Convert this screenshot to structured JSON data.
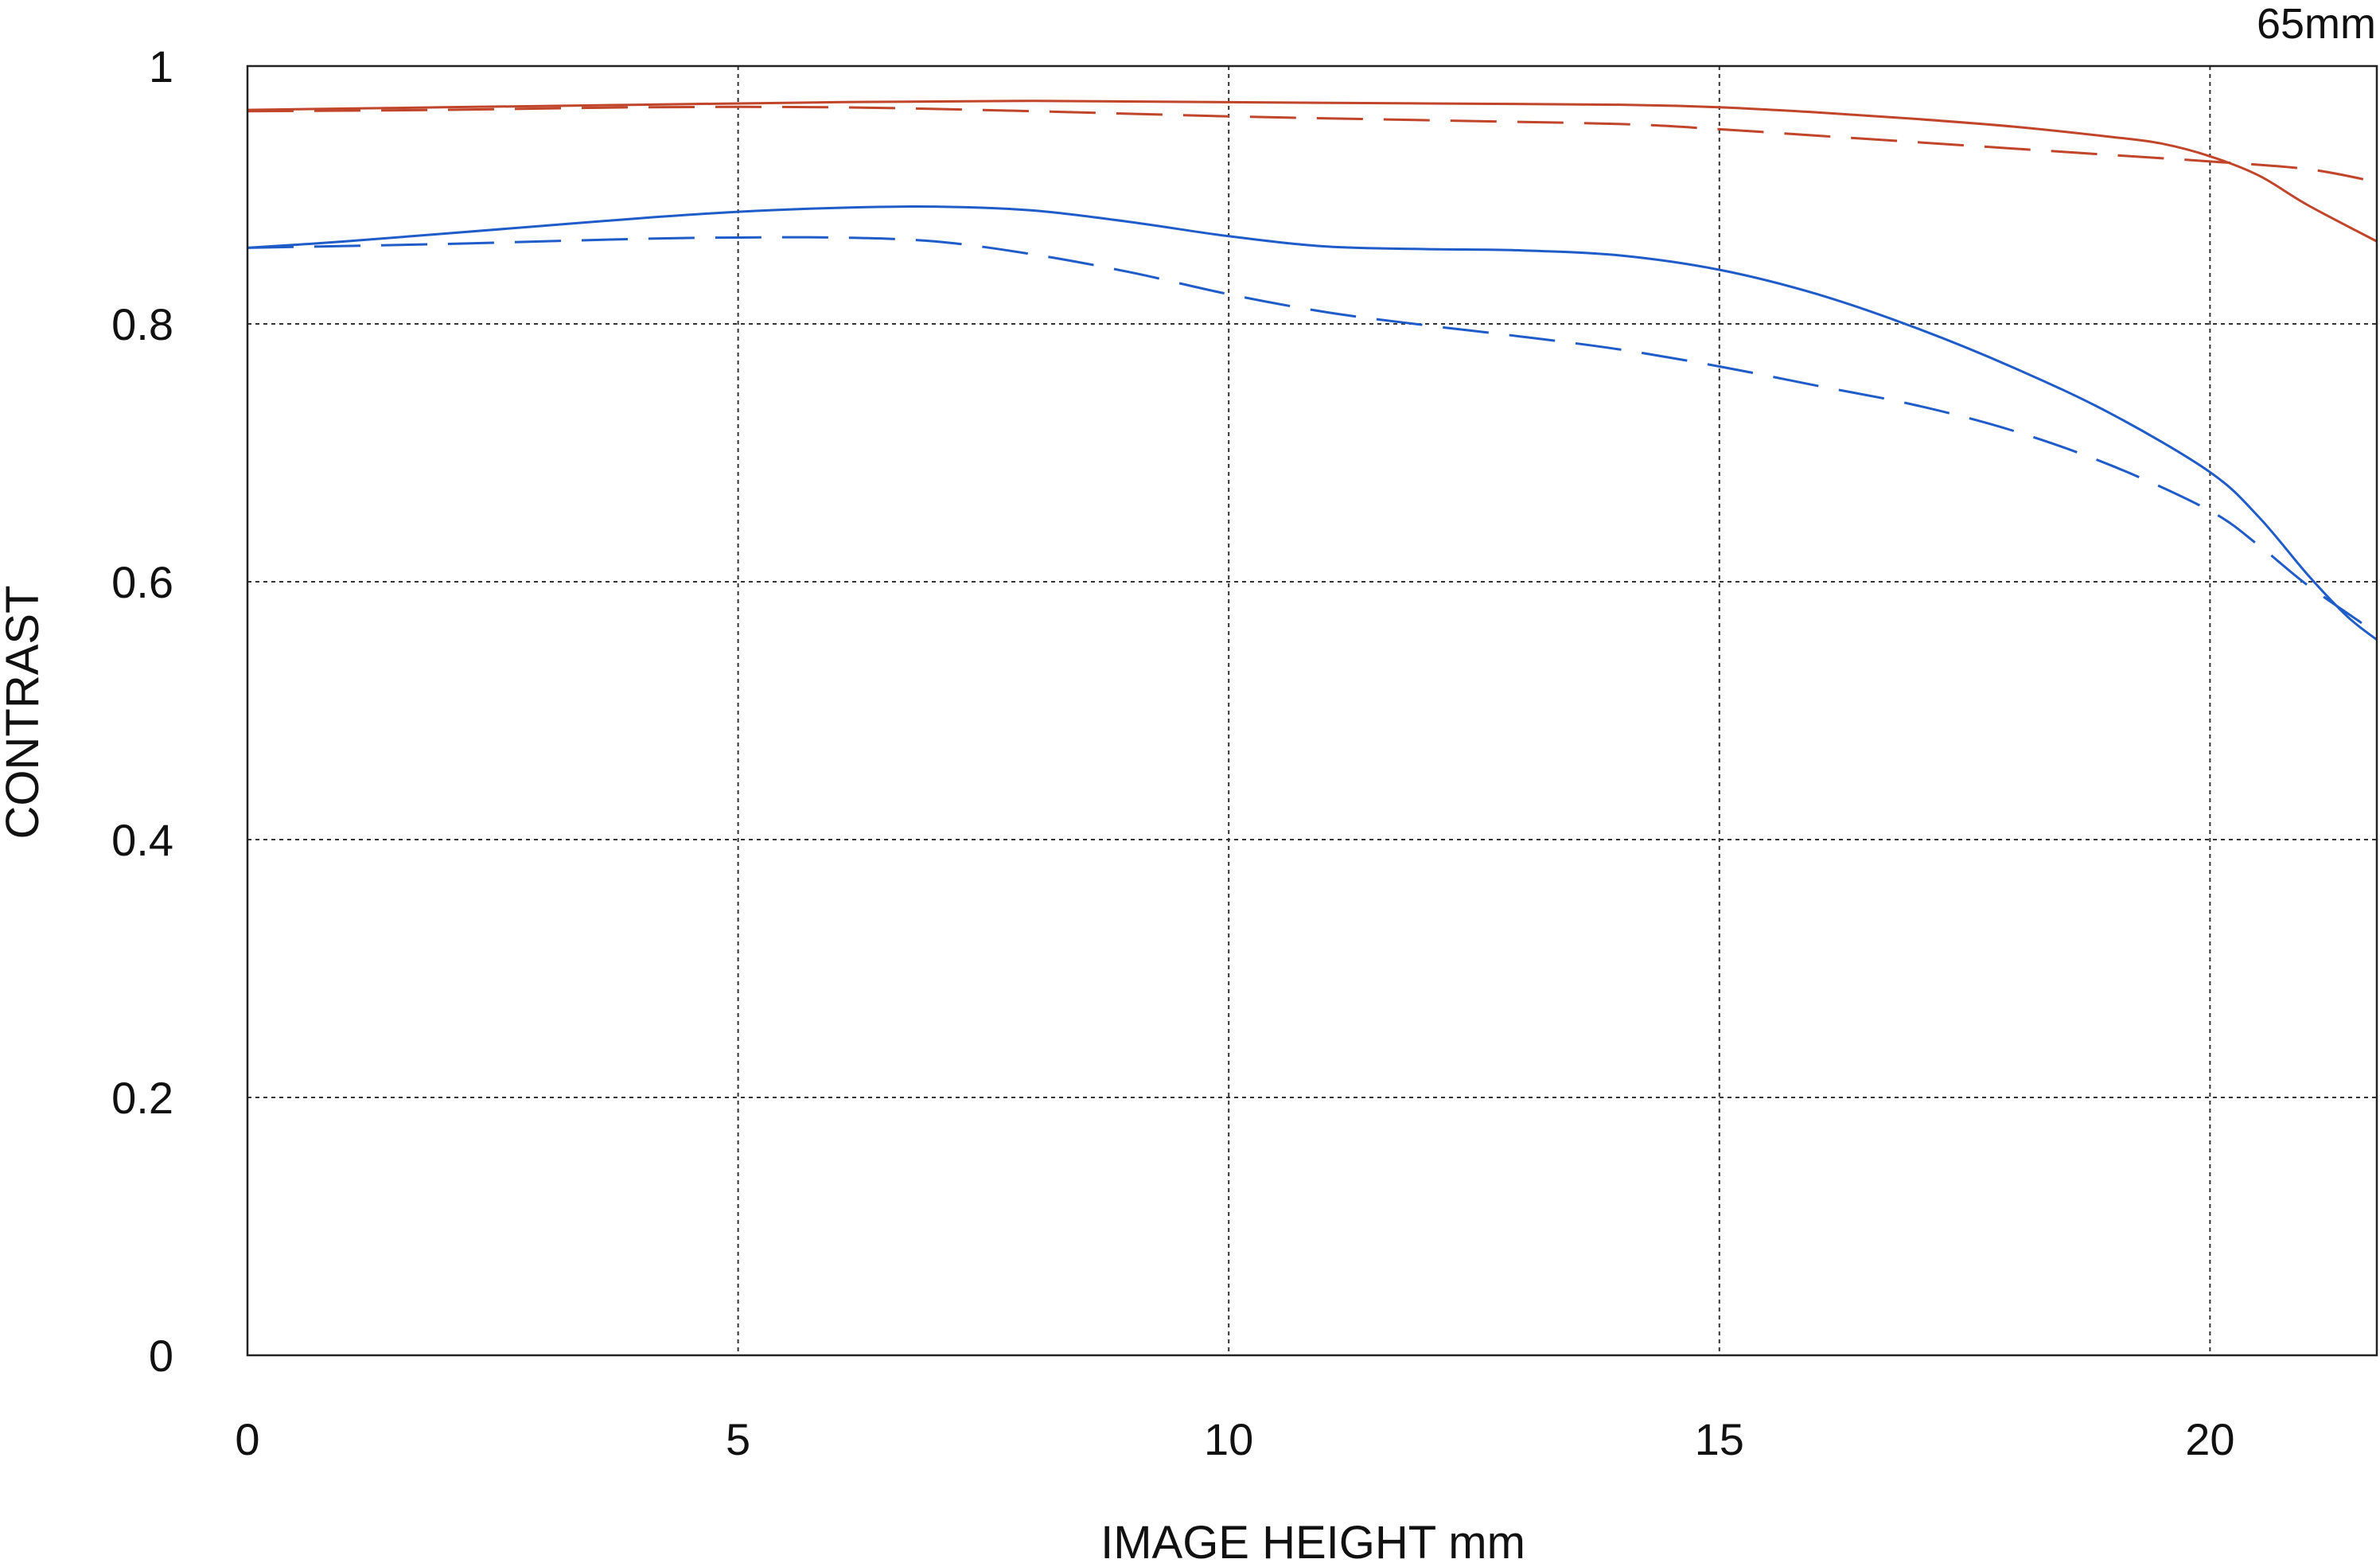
{
  "chart_data": {
    "type": "line",
    "title": "65mm",
    "xlabel": "IMAGE HEIGHT  mm",
    "ylabel": "CONTRAST",
    "xlim": [
      0,
      21.7
    ],
    "ylim": [
      0,
      1
    ],
    "xticks": [
      0,
      5,
      10,
      15,
      20
    ],
    "yticks": [
      0,
      0.2,
      0.4,
      0.6,
      0.8,
      1
    ],
    "xtick_labels": [
      "0",
      "5",
      "10",
      "15",
      "20"
    ],
    "ytick_labels": [
      "0",
      "0.2",
      "0.4",
      "0.6",
      "0.8",
      "1"
    ],
    "grid": true,
    "legend": "none",
    "series": [
      {
        "color": "#c0452a",
        "style": "solid",
        "x": [
          0,
          2,
          4,
          6,
          8,
          10,
          12,
          14,
          15,
          16,
          17,
          18,
          19,
          19.5,
          20,
          20.5,
          21,
          21.7
        ],
        "y": [
          0.966,
          0.968,
          0.97,
          0.972,
          0.973,
          0.972,
          0.971,
          0.97,
          0.968,
          0.964,
          0.959,
          0.953,
          0.945,
          0.94,
          0.93,
          0.915,
          0.892,
          0.864
        ]
      },
      {
        "color": "#c0452a",
        "style": "dashed",
        "x": [
          0,
          2,
          4,
          6,
          8,
          10,
          12,
          14,
          15,
          16,
          17,
          18,
          19,
          20,
          21,
          21.7
        ],
        "y": [
          0.965,
          0.966,
          0.968,
          0.968,
          0.965,
          0.961,
          0.958,
          0.955,
          0.951,
          0.946,
          0.941,
          0.936,
          0.931,
          0.926,
          0.92,
          0.91
        ]
      },
      {
        "color": "#1f5cc8",
        "style": "solid",
        "x": [
          0,
          1,
          2,
          3,
          4,
          5,
          6,
          7,
          8,
          9,
          10,
          11,
          12,
          13,
          14,
          15,
          16,
          17,
          18,
          19,
          20,
          20.5,
          21,
          21.4,
          21.7
        ],
        "y": [
          0.859,
          0.864,
          0.87,
          0.876,
          0.882,
          0.887,
          0.89,
          0.891,
          0.888,
          0.879,
          0.868,
          0.86,
          0.858,
          0.857,
          0.853,
          0.842,
          0.823,
          0.797,
          0.766,
          0.73,
          0.685,
          0.65,
          0.605,
          0.573,
          0.555
        ]
      },
      {
        "color": "#1f5cc8",
        "style": "dashed",
        "x": [
          0,
          2,
          4,
          5,
          6,
          7,
          8,
          9,
          10,
          11,
          12,
          13,
          14,
          15,
          16,
          17,
          18,
          19,
          20,
          20.5,
          21,
          21.7
        ],
        "y": [
          0.859,
          0.862,
          0.866,
          0.867,
          0.867,
          0.864,
          0.854,
          0.84,
          0.823,
          0.809,
          0.799,
          0.79,
          0.78,
          0.767,
          0.752,
          0.737,
          0.717,
          0.69,
          0.655,
          0.628,
          0.597,
          0.56
        ]
      }
    ]
  }
}
